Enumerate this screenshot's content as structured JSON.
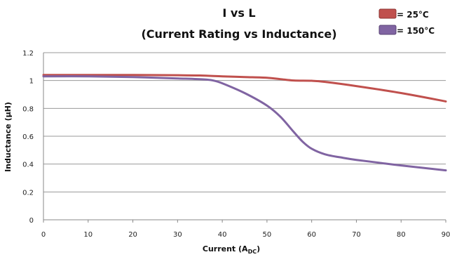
{
  "chart_data": {
    "type": "line",
    "title": "I vs L",
    "subtitle": "(Current Rating vs Inductance)",
    "xlabel_main": "Current (A",
    "xlabel_sub": "DC",
    "xlabel_close": ")",
    "ylabel": "Inductance (µH)",
    "xlim": [
      0,
      90
    ],
    "ylim": [
      0,
      1.2
    ],
    "x_ticks": [
      "0",
      "10",
      "20",
      "30",
      "40",
      "50",
      "60",
      "70",
      "80",
      "90"
    ],
    "y_ticks": [
      "0",
      "0.2",
      "0.4",
      "0.6",
      "0.8",
      "1",
      "1.2"
    ],
    "grid": "horizontal",
    "legend_position": "top-right",
    "series": [
      {
        "name": "= 25°C",
        "color": "#c0504d",
        "points": [
          [
            0,
            1.04
          ],
          [
            10,
            1.04
          ],
          [
            20,
            1.04
          ],
          [
            30,
            1.038
          ],
          [
            35,
            1.036
          ],
          [
            40,
            1.03
          ],
          [
            45,
            1.025
          ],
          [
            50,
            1.02
          ],
          [
            53,
            1.01
          ],
          [
            56,
            1.0
          ],
          [
            60,
            0.998
          ],
          [
            63,
            0.99
          ],
          [
            70,
            0.96
          ],
          [
            80,
            0.91
          ],
          [
            90,
            0.85
          ]
        ]
      },
      {
        "name": "= 150°C",
        "color": "#8064a2",
        "points": [
          [
            0,
            1.03
          ],
          [
            10,
            1.03
          ],
          [
            20,
            1.025
          ],
          [
            30,
            1.015
          ],
          [
            36,
            1.008
          ],
          [
            38,
            1.0
          ],
          [
            40,
            0.98
          ],
          [
            45,
            0.91
          ],
          [
            50,
            0.82
          ],
          [
            53,
            0.74
          ],
          [
            56,
            0.63
          ],
          [
            58,
            0.56
          ],
          [
            60,
            0.51
          ],
          [
            63,
            0.47
          ],
          [
            67,
            0.445
          ],
          [
            70,
            0.43
          ],
          [
            75,
            0.41
          ],
          [
            80,
            0.39
          ],
          [
            90,
            0.355
          ]
        ]
      }
    ]
  }
}
